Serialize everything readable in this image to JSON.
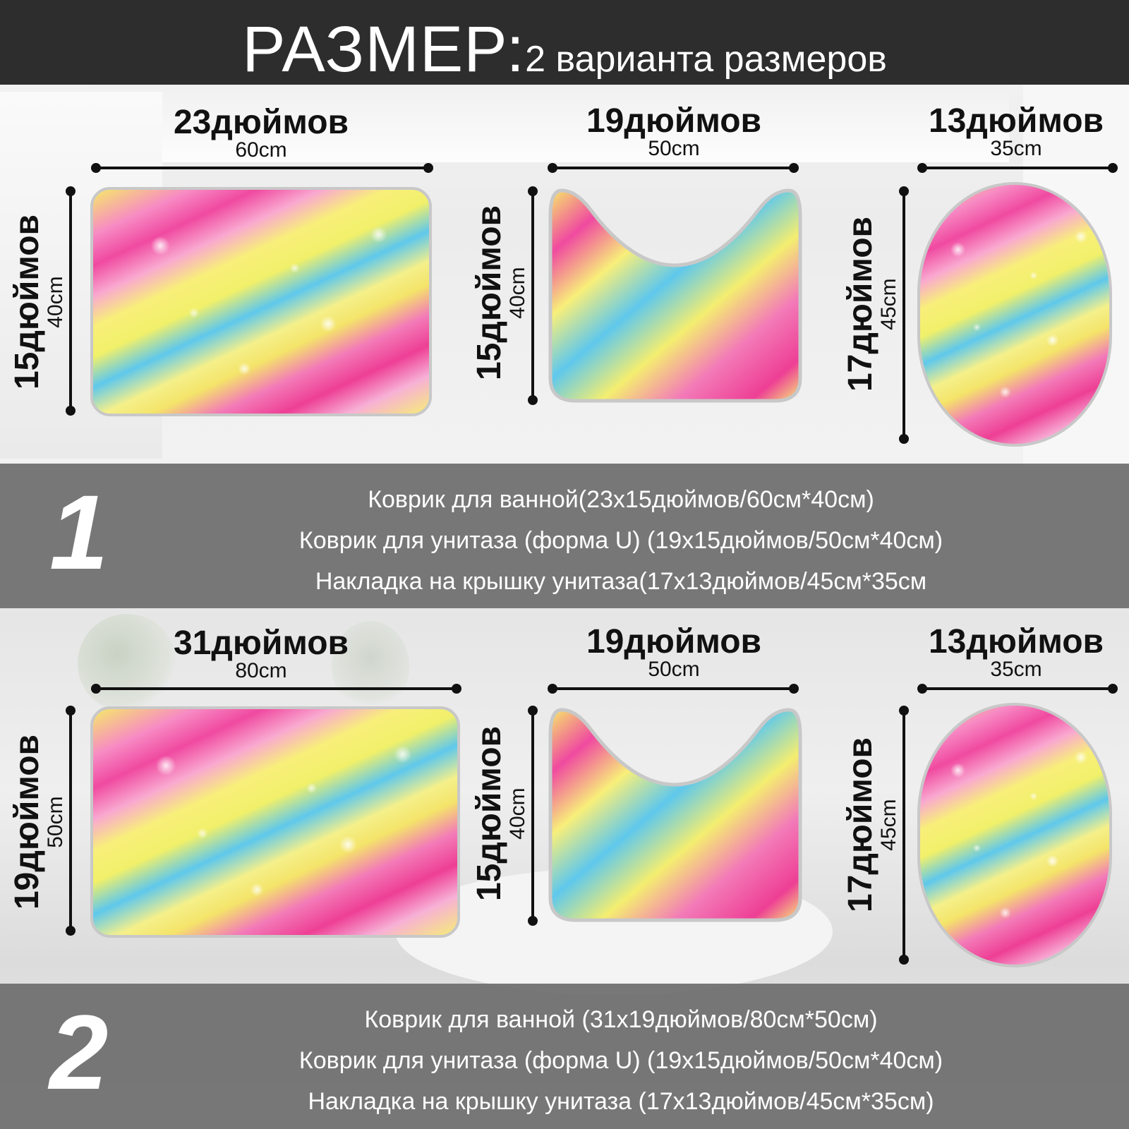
{
  "header": {
    "title_big": "РАЗМЕР:",
    "title_small": "2 варианта размеров"
  },
  "set1": {
    "bath_mat": {
      "width_in": "23дюймов",
      "width_cm": "60cm",
      "height_in": "15дюймов",
      "height_cm": "40cm"
    },
    "u_mat": {
      "width_in": "19дюймов",
      "width_cm": "50cm",
      "height_in": "15дюймов",
      "height_cm": "40cm"
    },
    "lid_cover": {
      "width_in": "13дюймов",
      "width_cm": "35cm",
      "height_in": "17дюймов",
      "height_cm": "45cm"
    }
  },
  "band1": {
    "number": "1",
    "lines": [
      "Коврик для ванной(23x15дюймов/60см*40см)",
      "Коврик для унитаза (форма U) (19x15дюймов/50см*40см)",
      "Накладка на крышку унитаза(17x13дюймов/45см*35см"
    ]
  },
  "set2": {
    "bath_mat": {
      "width_in": "31дюймов",
      "width_cm": "80cm",
      "height_in": "19дюймов",
      "height_cm": "50cm"
    },
    "u_mat": {
      "width_in": "19дюймов",
      "width_cm": "50cm",
      "height_in": "15дюймов",
      "height_cm": "40cm"
    },
    "lid_cover": {
      "width_in": "13дюймов",
      "width_cm": "35cm",
      "height_in": "17дюймов",
      "height_cm": "45cm"
    }
  },
  "band2": {
    "number": "2",
    "lines": [
      "Коврик для ванной (31x19дюймов/80см*50см)",
      "Коврик для унитаза (форма U) (19x15дюймов/50см*40см)",
      "Накладка на крышку унитаза (17x13дюймов/45см*35см)"
    ]
  },
  "colors": {
    "header_bg": "#2d2d2d",
    "band_bg": "#6e6e6e",
    "dimension_line": "#111111"
  }
}
